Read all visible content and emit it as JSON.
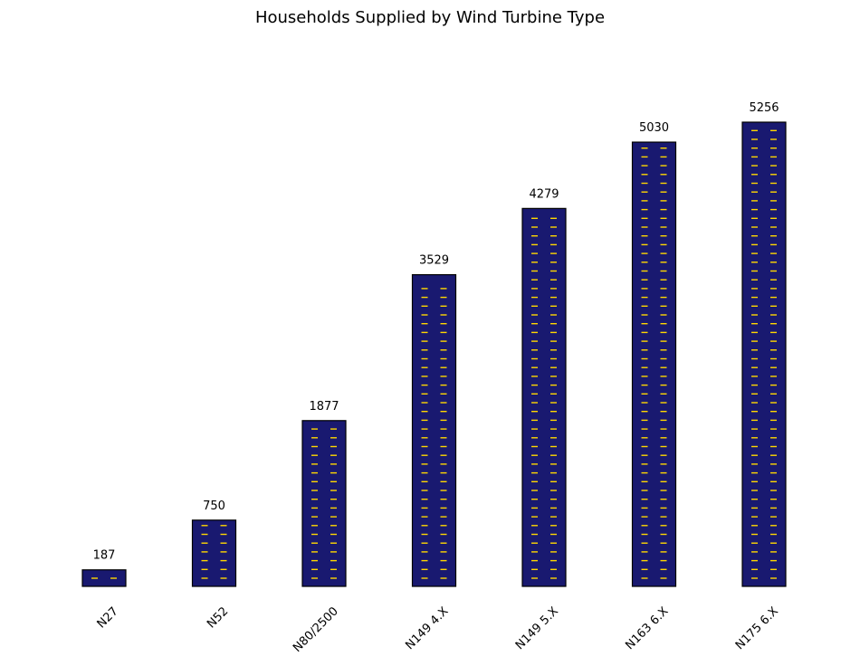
{
  "chart_data": {
    "type": "bar",
    "title": "Households Supplied by Wind Turbine Type",
    "xlabel": "",
    "ylabel": "",
    "categories": [
      "N27",
      "N52",
      "N80/2500",
      "N149 4.X",
      "N149 5.X",
      "N163 6.X",
      "N175 6.X"
    ],
    "values": [
      187,
      750,
      1877,
      3529,
      4279,
      5030,
      5256
    ],
    "value_labels": [
      "187",
      "750",
      "1877",
      "3529",
      "4279",
      "5030",
      "5256"
    ],
    "ylim": [
      0,
      5256
    ],
    "grid": false,
    "axes_visible": false,
    "legend": "none",
    "colors": {
      "bar_fill": "#191970",
      "bar_edge": "#000000",
      "window_marks": "#FFD700"
    },
    "decoration": "each bar is drawn as a building with two columns of small yellow window marks"
  }
}
